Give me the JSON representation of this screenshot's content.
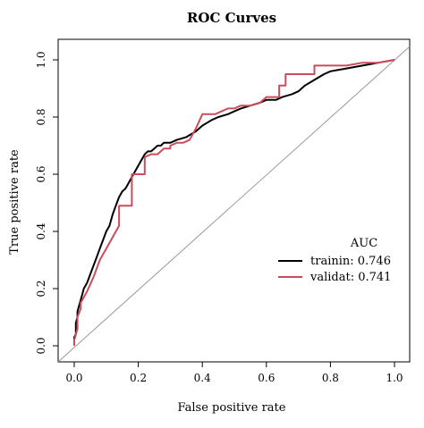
{
  "chart_data": {
    "type": "line",
    "title": "ROC Curves",
    "xlabel": "False positive rate",
    "ylabel": "True positive rate",
    "xlim": [
      0,
      1
    ],
    "ylim": [
      0,
      1
    ],
    "x_ticks": [
      "0.0",
      "0.2",
      "0.4",
      "0.6",
      "0.8",
      "1.0"
    ],
    "y_ticks": [
      "0.0",
      "0.2",
      "0.4",
      "0.6",
      "0.8",
      "1.0"
    ],
    "grid": false,
    "legend": {
      "title": "AUC",
      "placement": "bottom-right",
      "entries": [
        {
          "label": "trainin: 0.746",
          "color": "#000000"
        },
        {
          "label": "validat: 0.741",
          "color": "#cc4c5b"
        }
      ]
    },
    "reference_line": {
      "from": [
        0,
        0
      ],
      "to": [
        1,
        1
      ],
      "color": "#999999"
    },
    "series": [
      {
        "color": "#000000",
        "x": [
          0,
          0,
          0.005,
          0.005,
          0.01,
          0.01,
          0.015,
          0.02,
          0.025,
          0.03,
          0.04,
          0.05,
          0.06,
          0.07,
          0.08,
          0.09,
          0.1,
          0.11,
          0.12,
          0.13,
          0.14,
          0.15,
          0.16,
          0.17,
          0.18,
          0.19,
          0.2,
          0.21,
          0.22,
          0.23,
          0.24,
          0.25,
          0.26,
          0.27,
          0.28,
          0.3,
          0.32,
          0.35,
          0.38,
          0.4,
          0.43,
          0.45,
          0.48,
          0.5,
          0.52,
          0.55,
          0.58,
          0.6,
          0.63,
          0.65,
          0.68,
          0.7,
          0.72,
          0.75,
          0.78,
          0.8,
          0.85,
          0.9,
          0.95,
          1.0
        ],
        "y": [
          0,
          0.03,
          0.04,
          0.08,
          0.1,
          0.12,
          0.14,
          0.16,
          0.18,
          0.2,
          0.22,
          0.25,
          0.28,
          0.31,
          0.34,
          0.37,
          0.4,
          0.42,
          0.46,
          0.49,
          0.52,
          0.54,
          0.55,
          0.57,
          0.59,
          0.61,
          0.63,
          0.65,
          0.67,
          0.68,
          0.68,
          0.69,
          0.7,
          0.7,
          0.71,
          0.71,
          0.72,
          0.73,
          0.75,
          0.77,
          0.79,
          0.8,
          0.81,
          0.82,
          0.83,
          0.84,
          0.85,
          0.86,
          0.86,
          0.87,
          0.88,
          0.89,
          0.91,
          0.93,
          0.95,
          0.96,
          0.97,
          0.98,
          0.99,
          1.0
        ]
      },
      {
        "color": "#cc4c5b",
        "x": [
          0,
          0,
          0.01,
          0.01,
          0.02,
          0.02,
          0.04,
          0.06,
          0.08,
          0.1,
          0.12,
          0.14,
          0.14,
          0.18,
          0.18,
          0.22,
          0.22,
          0.24,
          0.26,
          0.28,
          0.3,
          0.3,
          0.32,
          0.34,
          0.36,
          0.38,
          0.4,
          0.42,
          0.44,
          0.46,
          0.48,
          0.5,
          0.52,
          0.55,
          0.58,
          0.6,
          0.62,
          0.64,
          0.64,
          0.66,
          0.66,
          0.72,
          0.75,
          0.75,
          0.8,
          0.85,
          0.9,
          0.95,
          1.0
        ],
        "y": [
          0,
          0.02,
          0.06,
          0.1,
          0.13,
          0.15,
          0.19,
          0.24,
          0.3,
          0.34,
          0.38,
          0.42,
          0.49,
          0.49,
          0.6,
          0.6,
          0.66,
          0.67,
          0.67,
          0.69,
          0.69,
          0.7,
          0.71,
          0.71,
          0.72,
          0.76,
          0.81,
          0.81,
          0.81,
          0.82,
          0.83,
          0.83,
          0.84,
          0.84,
          0.85,
          0.87,
          0.87,
          0.87,
          0.91,
          0.91,
          0.95,
          0.95,
          0.95,
          0.98,
          0.98,
          0.98,
          0.99,
          0.99,
          1.0
        ]
      }
    ]
  }
}
